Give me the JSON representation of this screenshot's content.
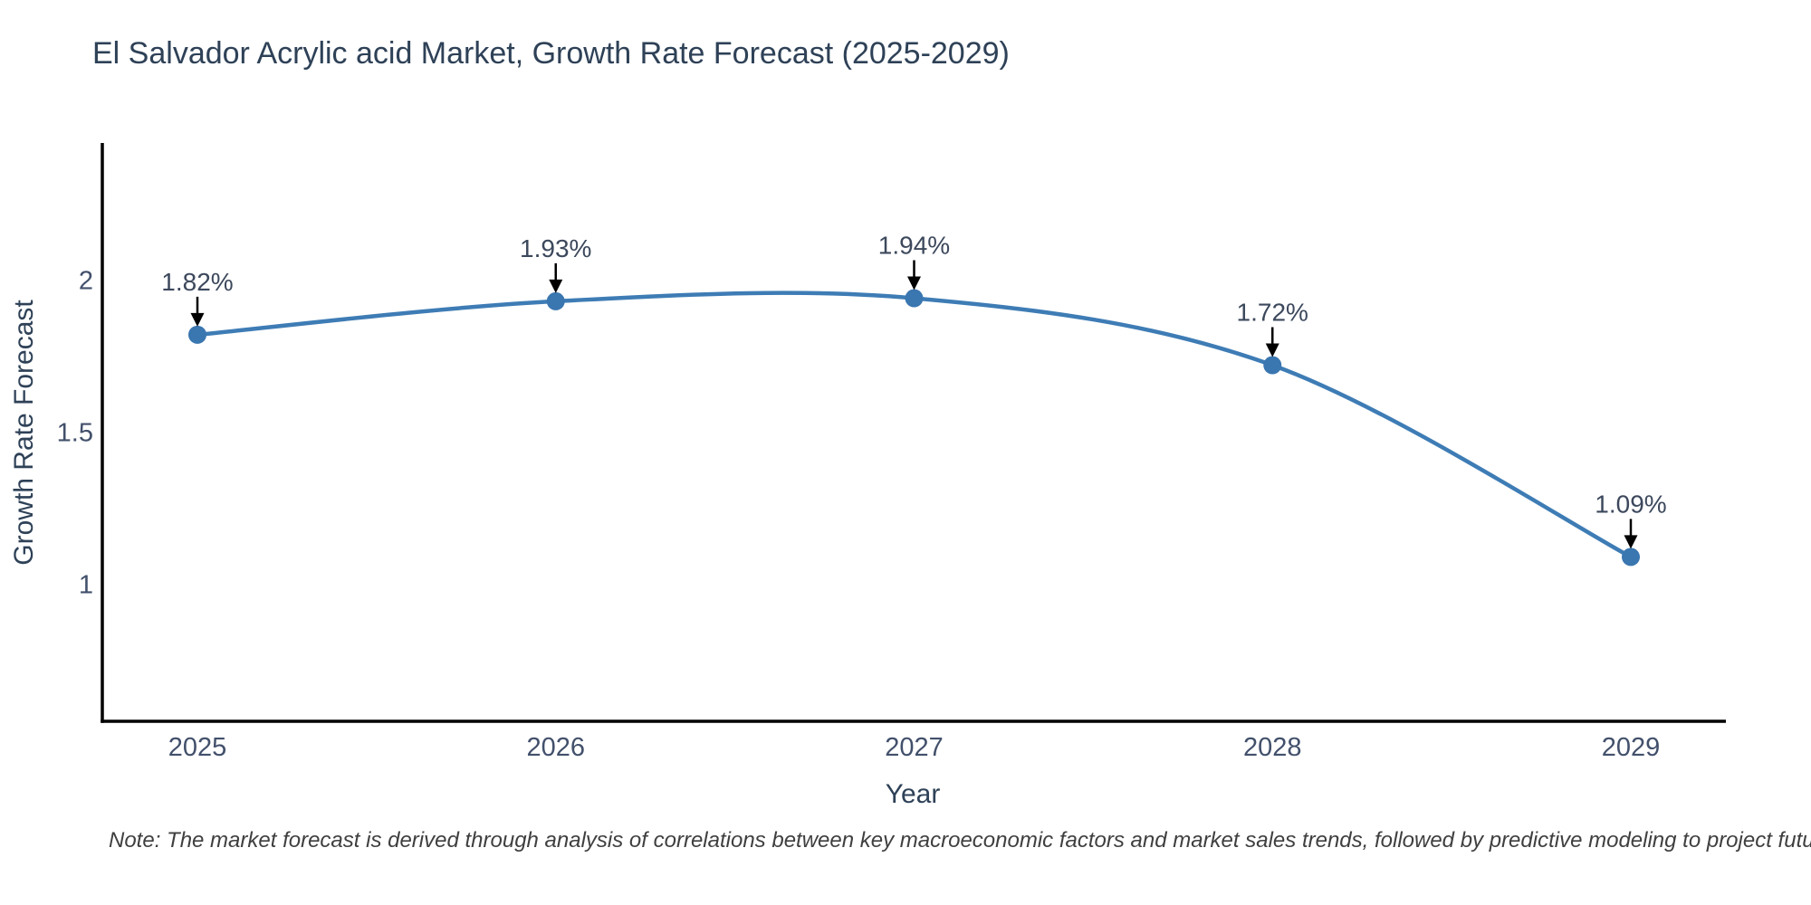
{
  "chart_data": {
    "type": "line",
    "title": "El Salvador Acrylic acid Market, Growth Rate Forecast (2025-2029)",
    "xlabel": "Year",
    "ylabel": "Growth Rate Forecast",
    "categories": [
      "2025",
      "2026",
      "2027",
      "2028",
      "2029"
    ],
    "values": [
      1.82,
      1.93,
      1.94,
      1.72,
      1.09
    ],
    "point_labels": [
      "1.82%",
      "1.93%",
      "1.94%",
      "1.72%",
      "1.09%"
    ],
    "yticks": [
      1,
      1.5,
      2
    ],
    "ytick_labels": [
      "1",
      "1.5",
      "2"
    ],
    "ylim": [
      0.55,
      2.45
    ],
    "grid": false,
    "legend": false,
    "line_color": "#3e7cb5",
    "marker_color": "#3a76b0",
    "axis_color": "#000000",
    "arrow_color": "#000000",
    "title_color": "#2e4157",
    "tick_color": "#42506b",
    "annotation_color": "#3c485c",
    "note_color": "#3f3f3f",
    "note": "Note: The market forecast is derived through analysis of correlations between key macroeconomic factors and market sales trends, followed by predictive modeling to project future sales."
  }
}
